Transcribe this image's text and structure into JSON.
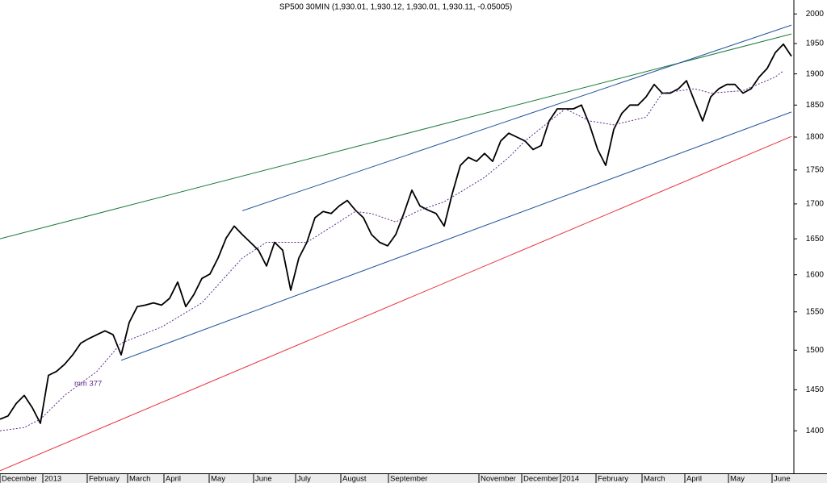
{
  "chart_data": {
    "type": "line",
    "title": "SP500 30MIN (1,930.01, 1,930.12, 1,930.01, 1,930.11, -0.05005)",
    "log": true,
    "grid": false,
    "xlim": [
      0,
      98
    ],
    "ylim": [
      1350,
      2024
    ],
    "yticks": [
      1400,
      1450,
      1500,
      1550,
      1600,
      1650,
      1700,
      1750,
      1800,
      1850,
      1900,
      1950,
      2000
    ],
    "xticks": [
      {
        "value": 0,
        "label": "December"
      },
      {
        "value": 5.3,
        "label": "2013"
      },
      {
        "value": 10.8,
        "label": "February"
      },
      {
        "value": 15.8,
        "label": "March"
      },
      {
        "value": 20.3,
        "label": "April"
      },
      {
        "value": 25.9,
        "label": "May"
      },
      {
        "value": 31.4,
        "label": "June"
      },
      {
        "value": 36.6,
        "label": "July"
      },
      {
        "value": 42.2,
        "label": "August"
      },
      {
        "value": 48.1,
        "label": "September"
      },
      {
        "value": 59.3,
        "label": "November"
      },
      {
        "value": 64.6,
        "label": "December"
      },
      {
        "value": 69.4,
        "label": "2014"
      },
      {
        "value": 73.8,
        "label": "February"
      },
      {
        "value": 79.5,
        "label": "March"
      },
      {
        "value": 84.8,
        "label": "April"
      },
      {
        "value": 90.2,
        "label": "May"
      },
      {
        "value": 95.6,
        "label": "June"
      }
    ],
    "series": [
      {
        "color": "#000000",
        "x": [
          0,
          1,
          2,
          3,
          4,
          5,
          6,
          7,
          8,
          9,
          10,
          11,
          12,
          13,
          14,
          15,
          16,
          17,
          18,
          19,
          20,
          21,
          22,
          23,
          24,
          25,
          26,
          27,
          28,
          29,
          30,
          31,
          32,
          33,
          34,
          35,
          36,
          37,
          38,
          39,
          40,
          41,
          42,
          43,
          44,
          45,
          46,
          47,
          48,
          49,
          50,
          51,
          52,
          53,
          54,
          55,
          56,
          57,
          58,
          59,
          60,
          61,
          62,
          63,
          64,
          65,
          66,
          67,
          68,
          69,
          70,
          71,
          72,
          73,
          74,
          75,
          76,
          77,
          78,
          79,
          80,
          81,
          82,
          83,
          84,
          85,
          86,
          87,
          88,
          89,
          90,
          91,
          92,
          93,
          94,
          95,
          96,
          97,
          98
        ],
        "values": [
          1414,
          1418,
          1433,
          1443,
          1428,
          1409,
          1468,
          1473,
          1482,
          1494,
          1509,
          1515,
          1520,
          1525,
          1520,
          1494,
          1536,
          1557,
          1559,
          1562,
          1559,
          1568,
          1590,
          1557,
          1573,
          1595,
          1601,
          1623,
          1651,
          1668,
          1656,
          1645,
          1634,
          1612,
          1645,
          1634,
          1579,
          1623,
          1645,
          1680,
          1689,
          1686,
          1697,
          1705,
          1691,
          1680,
          1656,
          1645,
          1640,
          1656,
          1686,
          1720,
          1697,
          1691,
          1686,
          1668,
          1715,
          1757,
          1769,
          1763,
          1775,
          1763,
          1794,
          1806,
          1800,
          1794,
          1781,
          1787,
          1825,
          1844,
          1844,
          1844,
          1850,
          1819,
          1781,
          1757,
          1812,
          1837,
          1850,
          1850,
          1863,
          1883,
          1869,
          1869,
          1876,
          1889,
          1856,
          1825,
          1863,
          1876,
          1883,
          1883,
          1869,
          1876,
          1895,
          1909,
          1935,
          1949,
          1929
        ]
      },
      {
        "name": "mm 377",
        "color": "#5a2a8a",
        "dash": true,
        "x": [
          0,
          3,
          5,
          8,
          12,
          15,
          20,
          25,
          30,
          33,
          38,
          42,
          44,
          46,
          49,
          52,
          55,
          60,
          63,
          65,
          70,
          73,
          76,
          80,
          82,
          86,
          88,
          92,
          96,
          97
        ],
        "values": [
          1400,
          1404,
          1414,
          1443,
          1473,
          1509,
          1530,
          1562,
          1623,
          1645,
          1645,
          1674,
          1689,
          1686,
          1674,
          1691,
          1703,
          1739,
          1769,
          1794,
          1844,
          1825,
          1819,
          1831,
          1869,
          1876,
          1869,
          1873,
          1895,
          1905
        ]
      },
      {
        "color": "#1a7a3a",
        "x": [
          0,
          98
        ],
        "values": [
          1650,
          1966
        ]
      },
      {
        "color": "#2255a0",
        "x": [
          30,
          98
        ],
        "values": [
          1690,
          1981
        ]
      },
      {
        "color": "#2255a0",
        "x": [
          15,
          98
        ],
        "values": [
          1487,
          1839
        ]
      },
      {
        "color": "#e8303f",
        "x": [
          0,
          98
        ],
        "values": [
          1353,
          1801
        ]
      }
    ]
  }
}
